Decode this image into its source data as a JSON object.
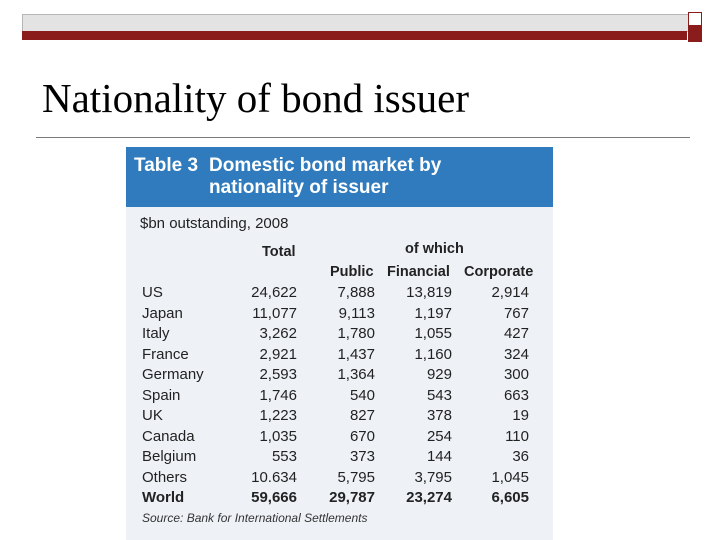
{
  "slide": {
    "title": "Nationality of bond issuer"
  },
  "table": {
    "number": "Table 3",
    "title": "Domestic bond market by nationality of issuer",
    "subtitle": "$bn outstanding, 2008",
    "columns": {
      "total": "Total",
      "of_which": "of which",
      "public": "Public",
      "financial": "Financial",
      "corporate": "Corporate"
    },
    "rows": [
      {
        "name": "US",
        "total": "24,622",
        "public": "7,888",
        "financial": "13,819",
        "corporate": "2,914"
      },
      {
        "name": "Japan",
        "total": "11,077",
        "public": "9,113",
        "financial": "1,197",
        "corporate": "767"
      },
      {
        "name": "Italy",
        "total": "3,262",
        "public": "1,780",
        "financial": "1,055",
        "corporate": "427"
      },
      {
        "name": "France",
        "total": "2,921",
        "public": "1,437",
        "financial": "1,160",
        "corporate": "324"
      },
      {
        "name": "Germany",
        "total": "2,593",
        "public": "1,364",
        "financial": "929",
        "corporate": "300"
      },
      {
        "name": "Spain",
        "total": "1,746",
        "public": "540",
        "financial": "543",
        "corporate": "663"
      },
      {
        "name": "UK",
        "total": "1,223",
        "public": "827",
        "financial": "378",
        "corporate": "19"
      },
      {
        "name": "Canada",
        "total": "1,035",
        "public": "670",
        "financial": "254",
        "corporate": "110"
      },
      {
        "name": "Belgium",
        "total": "553",
        "public": "373",
        "financial": "144",
        "corporate": "36"
      },
      {
        "name": "Others",
        "total": "10.634",
        "public": "5,795",
        "financial": "3,795",
        "corporate": "1,045"
      },
      {
        "name": "World",
        "total": "59,666",
        "public": "29,787",
        "financial": "23,274",
        "corporate": "6,605"
      }
    ],
    "source": "Source: Bank for International Settlements"
  },
  "colors": {
    "accent_red": "#8a1c1c",
    "header_blue": "#2f7bbd",
    "table_bg": "#eef2f7"
  }
}
